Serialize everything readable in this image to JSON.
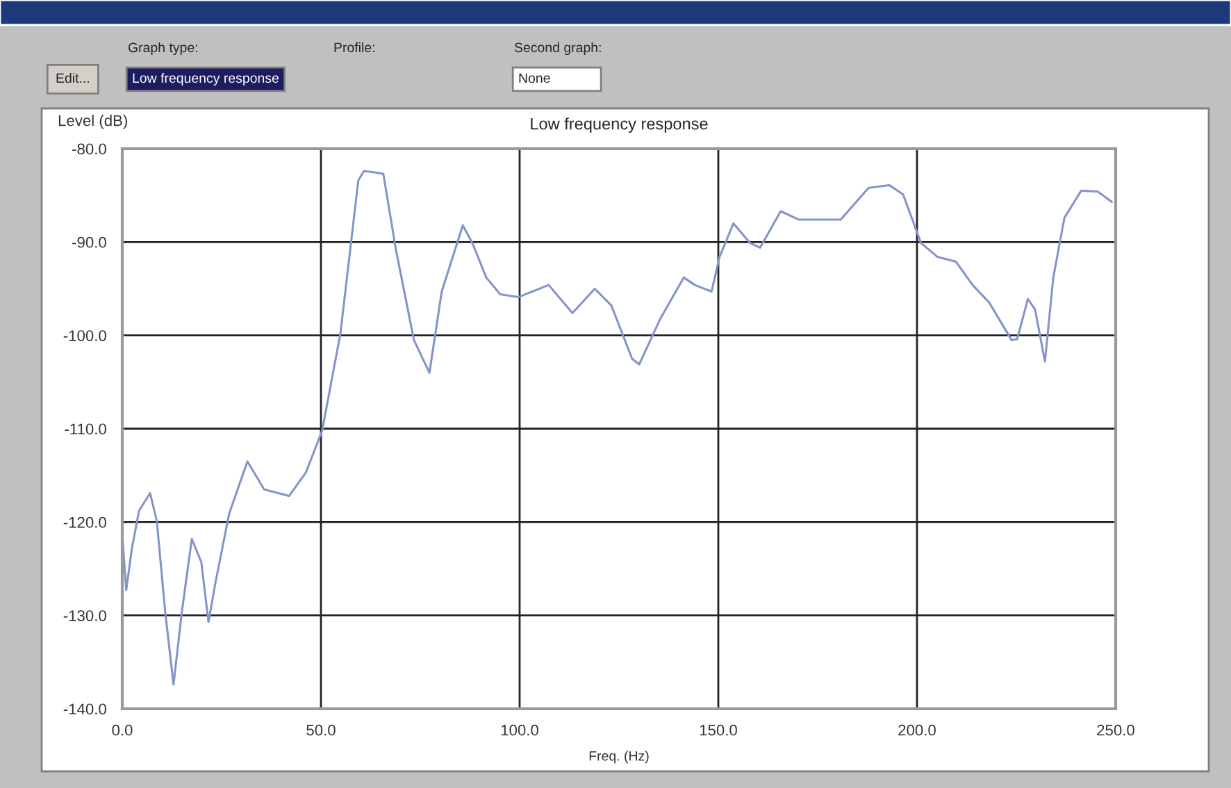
{
  "chart_data": {
    "type": "line",
    "title": "Low frequency response",
    "xlabel": "Freq. (Hz)",
    "ylabel": "Level (dB)",
    "annotations": [
      "Edit...",
      "Graph type:",
      "Low frequency response",
      "Profile:",
      "Second graph:",
      "None"
    ],
    "x": [
      0,
      1.0,
      2.4,
      4.2,
      7.0,
      8.7,
      10.8,
      12.9,
      15.0,
      17.5,
      19.9,
      21.7,
      23.4,
      26.9,
      31.5,
      35.7,
      42.0,
      46.2,
      50.3,
      54.9,
      59.4,
      60.8,
      62.9,
      65.7,
      68.9,
      73.4,
      77.3,
      80.4,
      85.7,
      88.1,
      91.6,
      95.1,
      99.7,
      107.3,
      113.3,
      118.9,
      123.1,
      128.3,
      130.1,
      135.3,
      141.3,
      144.1,
      148.3,
      150.3,
      153.8,
      158.0,
      160.5,
      165.7,
      170.3,
      180.8,
      187.8,
      193.0,
      196.5,
      201.0,
      205.2,
      209.8,
      214.0,
      218.2,
      223.8,
      225.2,
      227.9,
      229.7,
      232.2,
      234.3,
      237.1,
      241.3,
      245.5,
      249.0
    ],
    "series": [
      {
        "color": "#8494c8",
        "values": [
          -121.4,
          -127.3,
          -122.9,
          -118.8,
          -116.9,
          -119.9,
          -129.6,
          -137.4,
          -129.6,
          -121.8,
          -124.3,
          -130.7,
          -126.6,
          -119.1,
          -113.5,
          -116.5,
          -117.2,
          -114.7,
          -110.2,
          -99.8,
          -83.4,
          -82.4,
          -82.5,
          -82.7,
          -90.9,
          -100.5,
          -104.0,
          -95.3,
          -88.2,
          -90.1,
          -93.8,
          -95.6,
          -95.9,
          -94.6,
          -97.6,
          -95.0,
          -96.8,
          -102.5,
          -103.1,
          -98.3,
          -93.8,
          -94.6,
          -95.3,
          -91.6,
          -88.0,
          -90.1,
          -90.6,
          -86.7,
          -87.6,
          -87.6,
          -84.2,
          -83.9,
          -84.9,
          -90.1,
          -91.6,
          -92.1,
          -94.6,
          -96.5,
          -100.5,
          -100.4,
          -96.1,
          -97.2,
          -102.8,
          -93.8,
          -87.4,
          -84.5,
          -84.6,
          -85.7
        ]
      }
    ],
    "xlim": [
      0,
      250
    ],
    "xticks": [
      {
        "value": 0,
        "label": "0.0"
      },
      {
        "value": 50,
        "label": "50.0"
      },
      {
        "value": 100,
        "label": "100.0"
      },
      {
        "value": 150,
        "label": "150.0"
      },
      {
        "value": 200,
        "label": "200.0"
      },
      {
        "value": 250,
        "label": "250.0"
      }
    ],
    "ylim": [
      -140,
      -80
    ],
    "yticks": [
      {
        "value": -80,
        "label": "-80.0"
      },
      {
        "value": -90,
        "label": "-90.0"
      },
      {
        "value": -100,
        "label": "-100.0"
      },
      {
        "value": -110,
        "label": "-110.0"
      },
      {
        "value": -120,
        "label": "-120.0"
      },
      {
        "value": -130,
        "label": "-130.0"
      },
      {
        "value": -140,
        "label": "-140.0"
      }
    ],
    "grid": true,
    "legend": false,
    "marker": "none",
    "line_style": "solid"
  }
}
